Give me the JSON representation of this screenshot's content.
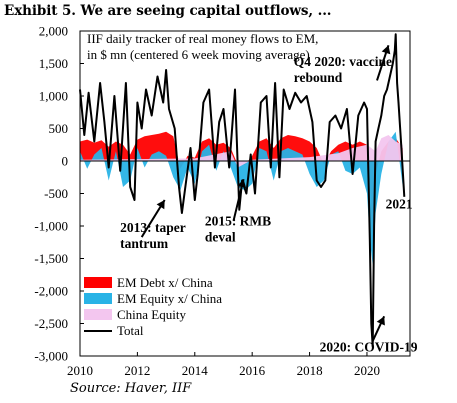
{
  "exhibit_title": "Exhibit 5. We are seeing capital outflows, ...",
  "source": "Source: Haver, IIF",
  "chart_data": {
    "type": "area",
    "subtitle_lines": [
      "IIF daily tracker of real money flows to EM,",
      "in $ mn (centered 6 week moving average)"
    ],
    "ylim": [
      -3000,
      2000
    ],
    "yticks": [
      2000,
      1500,
      1000,
      500,
      0,
      -500,
      -1000,
      -1500,
      -2000,
      -2500,
      -3000
    ],
    "ytick_labels": [
      "2,000",
      "1,500",
      "1,000",
      "500",
      "0",
      "-500",
      "-1,000",
      "-1,500",
      "-2,000",
      "-2,500",
      "-3,000"
    ],
    "xlim": [
      2010,
      2021.5
    ],
    "xticks": [
      2010,
      2012,
      2014,
      2016,
      2018,
      2020
    ],
    "xtick_labels": [
      "2010",
      "2012",
      "2014",
      "2016",
      "2018",
      "2020"
    ],
    "legend_position": "bottom-left",
    "series": [
      {
        "name": "EM Debt x/ China",
        "color": "#ff0000",
        "kind": "area",
        "x": [
          2010.0,
          2010.25,
          2010.5,
          2010.75,
          2011.0,
          2011.25,
          2011.5,
          2011.75,
          2012.0,
          2012.25,
          2012.5,
          2012.75,
          2013.0,
          2013.25,
          2013.5,
          2013.75,
          2014.0,
          2014.25,
          2014.5,
          2014.75,
          2015.0,
          2015.25,
          2015.5,
          2015.75,
          2016.0,
          2016.25,
          2016.5,
          2016.75,
          2017.0,
          2017.25,
          2017.5,
          2017.75,
          2018.0,
          2018.25,
          2018.5,
          2018.75,
          2019.0,
          2019.25,
          2019.5,
          2019.75,
          2020.0,
          2020.1,
          2020.2,
          2020.3,
          2020.5,
          2020.75,
          2021.0,
          2021.25
        ],
        "values": [
          300,
          330,
          280,
          320,
          220,
          300,
          250,
          100,
          330,
          380,
          400,
          420,
          450,
          380,
          -120,
          80,
          50,
          300,
          350,
          250,
          280,
          200,
          -60,
          -60,
          80,
          300,
          350,
          200,
          350,
          400,
          380,
          350,
          300,
          200,
          -50,
          150,
          250,
          300,
          250,
          300,
          250,
          -350,
          -1400,
          -200,
          150,
          300,
          350,
          200
        ]
      },
      {
        "name": "EM Equity x/ China",
        "color": "#29b3e6",
        "kind": "area",
        "x": [
          2010.0,
          2010.25,
          2010.5,
          2010.75,
          2011.0,
          2011.25,
          2011.5,
          2011.75,
          2012.0,
          2012.25,
          2012.5,
          2012.75,
          2013.0,
          2013.25,
          2013.5,
          2013.75,
          2014.0,
          2014.25,
          2014.5,
          2014.75,
          2015.0,
          2015.25,
          2015.5,
          2015.75,
          2016.0,
          2016.25,
          2016.5,
          2016.75,
          2017.0,
          2017.25,
          2017.5,
          2017.75,
          2018.0,
          2018.25,
          2018.5,
          2018.75,
          2019.0,
          2019.25,
          2019.5,
          2019.75,
          2020.0,
          2020.1,
          2020.2,
          2020.3,
          2020.5,
          2020.75,
          2021.0,
          2021.25
        ],
        "values": [
          150,
          -120,
          100,
          200,
          -300,
          150,
          -400,
          -300,
          200,
          -100,
          100,
          150,
          80,
          -250,
          -450,
          -100,
          -350,
          150,
          250,
          -150,
          150,
          -100,
          -400,
          -450,
          -350,
          200,
          150,
          -300,
          150,
          200,
          150,
          100,
          -200,
          -400,
          -300,
          100,
          150,
          -150,
          -200,
          -100,
          -500,
          -1200,
          -1600,
          -800,
          -200,
          300,
          450,
          -400
        ]
      },
      {
        "name": "China Equity",
        "color": "#f3c6ef",
        "kind": "area",
        "x": [
          2010.0,
          2012.0,
          2014.0,
          2015.25,
          2015.5,
          2016.0,
          2018.0,
          2019.0,
          2019.5,
          2020.0,
          2020.3,
          2020.5,
          2020.75,
          2021.0,
          2021.25
        ],
        "values": [
          20,
          30,
          40,
          150,
          -100,
          20,
          60,
          120,
          200,
          250,
          150,
          350,
          400,
          300,
          250
        ]
      },
      {
        "name": "Total",
        "color": "#000000",
        "kind": "line",
        "x": [
          2010.0,
          2010.15,
          2010.3,
          2010.5,
          2010.7,
          2010.85,
          2011.0,
          2011.2,
          2011.4,
          2011.6,
          2011.75,
          2011.9,
          2012.0,
          2012.15,
          2012.3,
          2012.5,
          2012.7,
          2012.9,
          2013.0,
          2013.1,
          2013.3,
          2013.45,
          2013.55,
          2013.7,
          2013.85,
          2014.0,
          2014.1,
          2014.3,
          2014.5,
          2014.7,
          2014.85,
          2015.0,
          2015.2,
          2015.4,
          2015.55,
          2015.65,
          2015.8,
          2015.95,
          2016.1,
          2016.3,
          2016.5,
          2016.65,
          2016.8,
          2016.95,
          2017.1,
          2017.3,
          2017.5,
          2017.7,
          2017.9,
          2018.1,
          2018.25,
          2018.4,
          2018.55,
          2018.7,
          2018.9,
          2019.1,
          2019.3,
          2019.5,
          2019.7,
          2019.9,
          2020.0,
          2020.05,
          2020.1,
          2020.15,
          2020.2,
          2020.25,
          2020.3,
          2020.4,
          2020.5,
          2020.6,
          2020.7,
          2020.8,
          2020.9,
          2020.97,
          2021.0,
          2021.05,
          2021.1,
          2021.2,
          2021.3
        ],
        "values": [
          1100,
          400,
          1050,
          300,
          1200,
          600,
          -100,
          1000,
          -150,
          1200,
          -400,
          -600,
          900,
          500,
          1100,
          700,
          1300,
          900,
          1400,
          800,
          500,
          -400,
          -800,
          -300,
          200,
          -600,
          -200,
          900,
          1100,
          -100,
          600,
          800,
          -100,
          1100,
          -750,
          -300,
          -500,
          100,
          -500,
          900,
          1000,
          -100,
          1200,
          -250,
          1100,
          800,
          1050,
          900,
          1000,
          600,
          -300,
          -400,
          -300,
          600,
          700,
          500,
          800,
          -200,
          700,
          900,
          800,
          -200,
          -1200,
          -2500,
          -2850,
          -1000,
          300,
          500,
          700,
          1000,
          1100,
          1300,
          1500,
          1700,
          1950,
          1200,
          900,
          200,
          -550
        ]
      }
    ],
    "annotations": [
      {
        "text_lines": [
          "2013: taper",
          "tantrum"
        ],
        "x": 2013.55,
        "y": -830
      },
      {
        "text_lines": [
          "2015: RMB",
          "deval"
        ],
        "x": 2015.6,
        "y": -830
      },
      {
        "text_lines": [
          "Q4 2020: vaccine",
          "rebound"
        ],
        "x": 2020.9,
        "y": 1850
      },
      {
        "text_lines": [
          "2021"
        ],
        "x": 2021.3,
        "y": -550
      },
      {
        "text_lines": [
          "2020: COVID-19"
        ],
        "x": 2020.2,
        "y": -2850
      }
    ]
  }
}
